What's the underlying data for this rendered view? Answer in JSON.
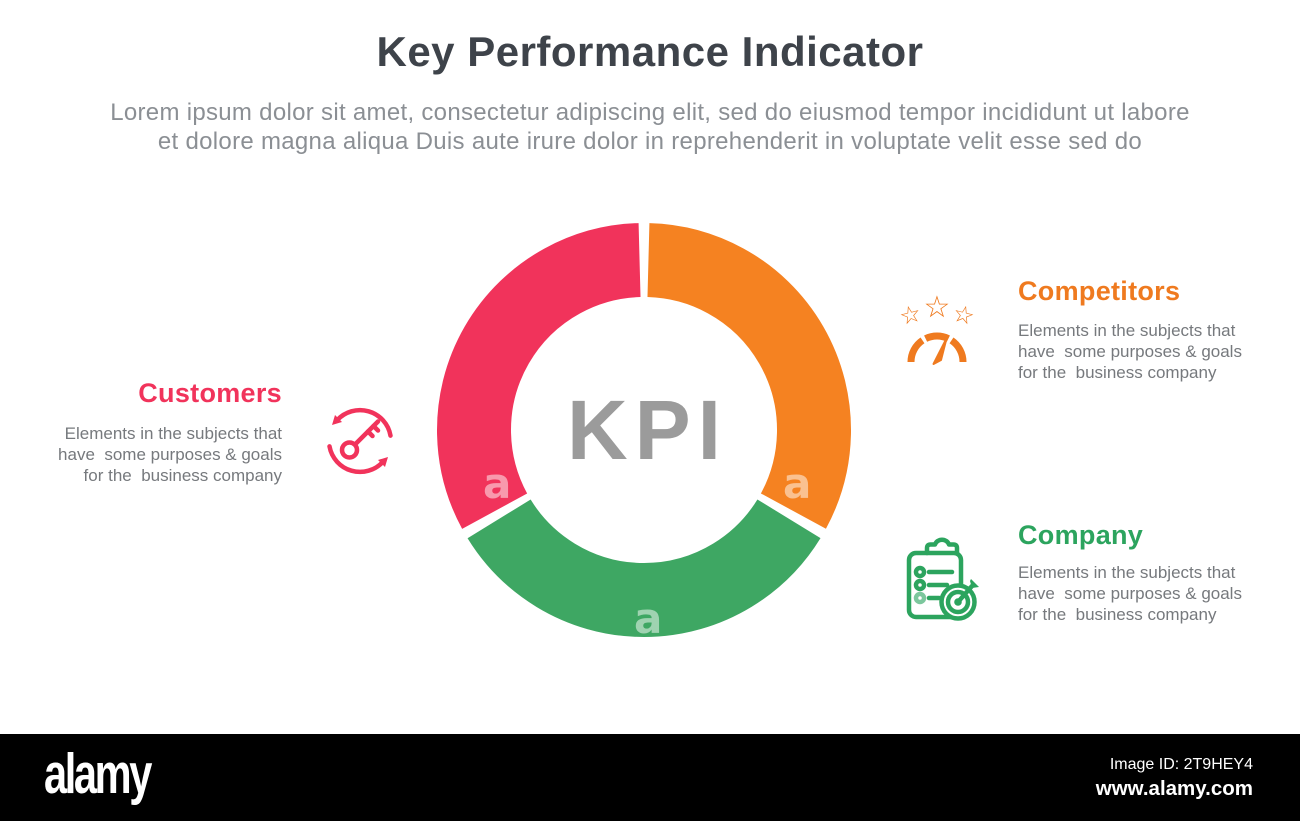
{
  "header": {
    "title": "Key Performance Indicator",
    "subtitle": "Lorem ipsum dolor sit amet, consectetur adipiscing elit, sed do eiusmod tempor incididunt ut labore\net dolore magna aliqua Duis aute irure dolor in reprehenderit in voluptate velit esse sed do"
  },
  "chart_data": {
    "type": "pie",
    "subtype": "donut",
    "title": "Key Performance Indicator",
    "center_label": "KPI",
    "categories": [
      "Competitors",
      "Company",
      "Customers"
    ],
    "values": [
      33.33,
      33.33,
      33.34
    ],
    "colors": [
      "#F58221",
      "#3EA763",
      "#F1335B"
    ],
    "start_angle_deg": 0,
    "direction": "clockwise",
    "gap_deg": 3,
    "outer_radius_px": 207,
    "inner_radius_px": 133,
    "legend_position": "none"
  },
  "sections": [
    {
      "id": "customers",
      "label": "Customers",
      "color": "#F1335B",
      "icon": "key-rotation-icon",
      "description": "Elements in the subjects that\nhave  some purposes & goals\nfor the  business company"
    },
    {
      "id": "competitors",
      "label": "Competitors",
      "color": "#EF7A1F",
      "icon": "gauge-stars-icon",
      "description": "Elements in the subjects that\nhave  some purposes & goals\nfor the  business company"
    },
    {
      "id": "company",
      "label": "Company",
      "color": "#2CA45E",
      "icon": "clipboard-target-icon",
      "description": "Elements in the subjects that\nhave  some purposes & goals\nfor the  business company"
    }
  ],
  "watermarks": {
    "letter": "a"
  },
  "footer": {
    "logo": "alamy",
    "image_id": "Image ID: 2T9HEY4",
    "url": "www.alamy.com"
  }
}
